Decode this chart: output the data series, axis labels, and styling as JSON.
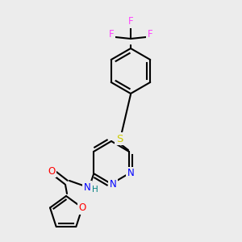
{
  "background_color": "#ececec",
  "bond_color": "#000000",
  "atom_colors": {
    "N": "#0000ff",
    "O": "#ff0000",
    "S": "#cccc00",
    "F": "#ff44ff",
    "H": "#008080",
    "C": "#000000"
  },
  "font_size_atom": 8.5,
  "fig_size": [
    3.0,
    3.0
  ],
  "dpi": 100
}
